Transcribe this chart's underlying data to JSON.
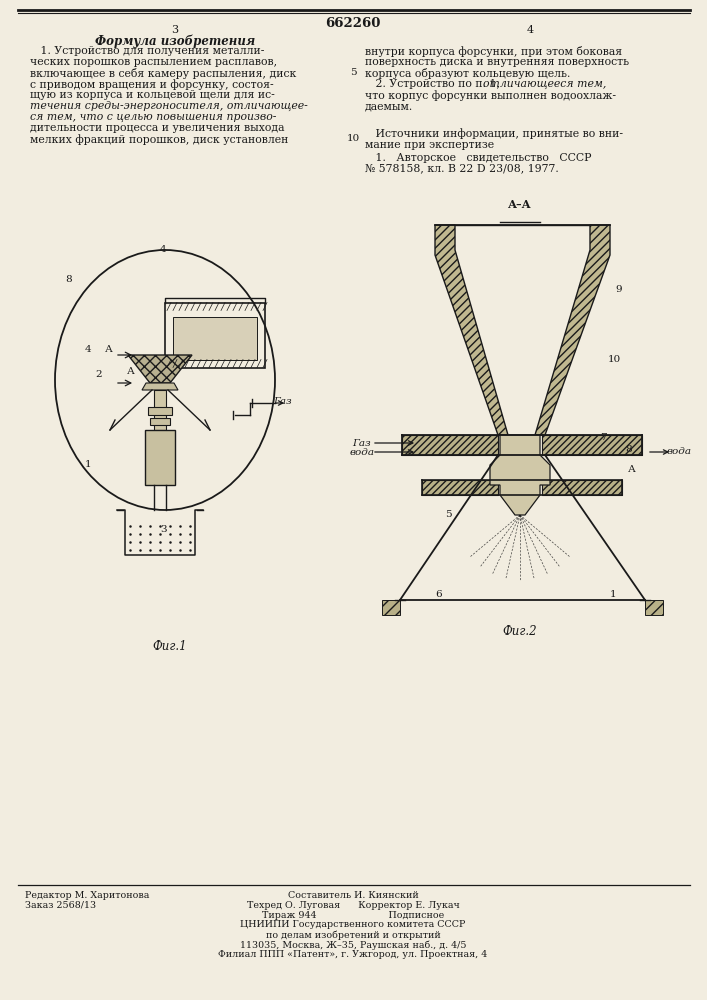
{
  "patent_number": "662260",
  "page_left": "3",
  "page_right": "4",
  "section_title": "Формула изобретения",
  "bg_color": "#f2ede0",
  "text_color": "#1a1a1a",
  "line_color": "#1a1a1a",
  "footer_left": [
    "Редактор М. Харитонова",
    "Заказ 2568/13"
  ],
  "footer_center": [
    "Составитель И. Киянский",
    "Техред О. Луговая      Корректор Е. Лукач",
    "Тираж 944                        Подписное"
  ],
  "footer_cniipи": [
    "ЦНИИПИ Государственного комитета СССР",
    "по делам изобретений и открытий",
    "113035, Москва, Ж–35, Раушская наб., д. 4/5",
    "Филиал ППП «Патент», г. Ужгород, ул. Проектная, 4"
  ]
}
